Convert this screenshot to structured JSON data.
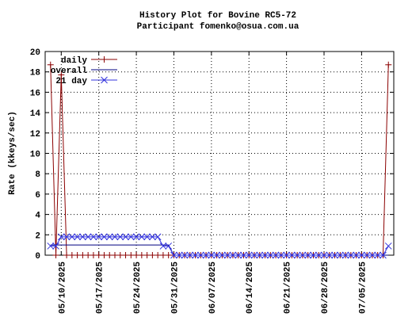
{
  "chart_data": {
    "type": "line",
    "title": "History Plot for Bovine RC5-72",
    "subtitle": "Participant fomenko@osua.com.ua",
    "y_label": "Rate (kkeys/sec)",
    "x": [
      "05/08/2025",
      "05/09/2025",
      "05/10/2025",
      "05/11/2025",
      "05/12/2025",
      "05/13/2025",
      "05/14/2025",
      "05/15/2025",
      "05/16/2025",
      "05/17/2025",
      "05/18/2025",
      "05/19/2025",
      "05/20/2025",
      "05/21/2025",
      "05/22/2025",
      "05/23/2025",
      "05/24/2025",
      "05/25/2025",
      "05/26/2025",
      "05/27/2025",
      "05/28/2025",
      "05/29/2025",
      "05/30/2025",
      "05/31/2025",
      "06/01/2025",
      "06/02/2025",
      "06/03/2025",
      "06/04/2025",
      "06/05/2025",
      "06/06/2025",
      "06/07/2025",
      "06/08/2025",
      "06/09/2025",
      "06/10/2025",
      "06/11/2025",
      "06/12/2025",
      "06/13/2025",
      "06/14/2025",
      "06/15/2025",
      "06/16/2025",
      "06/17/2025",
      "06/18/2025",
      "06/19/2025",
      "06/20/2025",
      "06/21/2025",
      "06/22/2025",
      "06/23/2025",
      "06/24/2025",
      "06/25/2025",
      "06/26/2025",
      "06/27/2025",
      "06/28/2025",
      "06/29/2025",
      "06/30/2025",
      "07/01/2025",
      "07/02/2025",
      "07/03/2025",
      "07/04/2025",
      "07/05/2025",
      "07/06/2025",
      "07/07/2025",
      "07/08/2025",
      "07/09/2025",
      "07/10/2025"
    ],
    "series": [
      {
        "name": "daily",
        "color": "#8b0000",
        "marker": "+",
        "values": [
          18.7,
          0,
          17.7,
          0,
          0,
          0,
          0,
          0,
          0,
          0,
          0,
          0,
          0,
          0,
          0,
          0,
          0,
          0,
          0,
          0,
          0,
          0,
          0,
          0,
          0,
          0,
          0,
          0,
          0,
          0,
          0,
          0,
          0,
          0,
          0,
          0,
          0,
          0,
          0,
          0,
          0,
          0,
          0,
          0,
          0,
          0,
          0,
          0,
          0,
          0,
          0,
          0,
          0,
          0,
          0,
          0,
          0,
          0,
          0,
          0,
          0,
          0,
          0,
          18.7
        ]
      },
      {
        "name": "overall",
        "color": "#000080",
        "marker": "none",
        "values": [
          1,
          1,
          1,
          1,
          1,
          1,
          1,
          1,
          1,
          1,
          1,
          1,
          1,
          1,
          1,
          1,
          1,
          1,
          1,
          1,
          1,
          1,
          1,
          0,
          0,
          0,
          0,
          0,
          0,
          0,
          0,
          0,
          0,
          0,
          0,
          0,
          0,
          0,
          0,
          0,
          0,
          0,
          0,
          0,
          0,
          0,
          0,
          0,
          0,
          0,
          0,
          0,
          0,
          0,
          0,
          0,
          0,
          0,
          0,
          0,
          0,
          0,
          0,
          0
        ]
      },
      {
        "name": "21 day",
        "color": "#3333dd",
        "marker": "x",
        "values": [
          0.9,
          0.9,
          1.8,
          1.8,
          1.8,
          1.8,
          1.8,
          1.8,
          1.8,
          1.8,
          1.8,
          1.8,
          1.8,
          1.8,
          1.8,
          1.8,
          1.8,
          1.8,
          1.8,
          1.8,
          1.8,
          0.9,
          0.9,
          0,
          0,
          0,
          0,
          0,
          0,
          0,
          0,
          0,
          0,
          0,
          0,
          0,
          0,
          0,
          0,
          0,
          0,
          0,
          0,
          0,
          0,
          0,
          0,
          0,
          0,
          0,
          0,
          0,
          0,
          0,
          0,
          0,
          0,
          0,
          0,
          0,
          0,
          0,
          0,
          0.9
        ]
      }
    ],
    "xlim": [
      "05/07/2025",
      "07/11/2025"
    ],
    "xticks": [
      "05/10/2025",
      "05/17/2025",
      "05/24/2025",
      "05/31/2025",
      "06/07/2025",
      "06/14/2025",
      "06/21/2025",
      "06/28/2025",
      "07/05/2025"
    ],
    "ylim": [
      0,
      20
    ],
    "yticks": [
      0,
      2,
      4,
      6,
      8,
      10,
      12,
      14,
      16,
      18,
      20
    ],
    "grid": true,
    "legend": "top-left"
  }
}
